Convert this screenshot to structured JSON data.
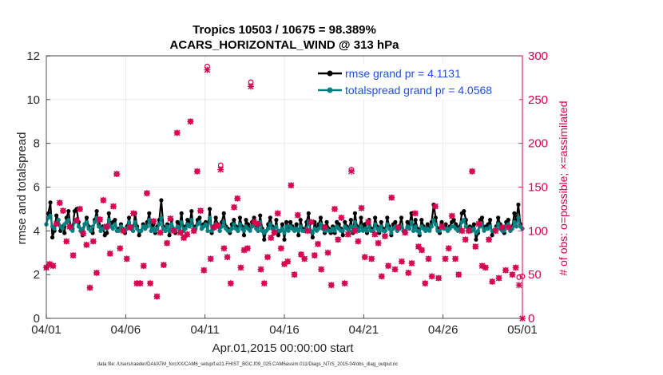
{
  "chart_data": {
    "type": "line",
    "title_line1": "Tropics 10503 / 10675 = 98.389%",
    "title_line2": "ACARS_HORIZONTAL_WIND @ 313 hPa",
    "xlabel": "Apr.01,2015 00:00:00 start",
    "ylabel_left": "rmse and totalspread",
    "ylabel_right": "# of obs: o=possible; ×=assimilated",
    "footer": "data file: /Users/raeder/DAI/ATM_forcXX/CAM6_setup/f.e21.FHIST_BGC.f09_025.CAM6assim.011/Diags_NTrS_2015-04/obs_diag_output.nc",
    "xlim": [
      0,
      30
    ],
    "ylim_left": [
      0,
      12
    ],
    "ylim_right": [
      0,
      300
    ],
    "x_ticks": [
      0,
      5,
      10,
      15,
      20,
      25,
      30
    ],
    "x_tick_labels": [
      "04/01",
      "04/06",
      "04/11",
      "04/16",
      "04/21",
      "04/26",
      "05/01"
    ],
    "y_ticks_left": [
      "0",
      "2",
      "4",
      "6",
      "8",
      "10",
      "12"
    ],
    "y_ticks_right": [
      "0",
      "50",
      "100",
      "150",
      "200",
      "250",
      "300"
    ],
    "legend_location": "top-right",
    "colors": {
      "rmse": "#000000",
      "spread": "#008080",
      "obs": "#d6004f",
      "legend_text": "#1f4fe6"
    },
    "series": [
      {
        "name": "rmse grand pr = 4.1131",
        "color": "#000000",
        "values": [
          4.3,
          4.8,
          5.3,
          3.7,
          4.0,
          4.7,
          4.5,
          4.0,
          4.2,
          3.9,
          4.6,
          4.9,
          4.2,
          4.1,
          4.9,
          5.0,
          4.4,
          4.0,
          3.8,
          4.3,
          4.6,
          4.2,
          4.0,
          3.9,
          4.5,
          4.9,
          4.3,
          4.0,
          4.2,
          3.8,
          3.9,
          4.8,
          4.2,
          4.4,
          4.5,
          4.0,
          4.1,
          4.3,
          4.0,
          3.9,
          4.2,
          4.6,
          4.1,
          4.0,
          4.8,
          4.2,
          3.8,
          4.0,
          4.3,
          4.1,
          4.4,
          4.8,
          4.0,
          4.3,
          3.9,
          4.2,
          4.5,
          5.4,
          4.2,
          4.0,
          4.3,
          3.8,
          4.5,
          4.1,
          3.9,
          4.4,
          4.2,
          4.8,
          4.0,
          4.2,
          4.5,
          4.3,
          4.9,
          4.0,
          4.2,
          4.5,
          4.6,
          4.1,
          4.3,
          4.4,
          4.0,
          5.0,
          3.9,
          4.2,
          4.6,
          4.3,
          4.0,
          4.4,
          4.8,
          4.2,
          4.1,
          3.9,
          4.3,
          4.5,
          4.2,
          4.0,
          4.6,
          4.2,
          3.8,
          4.5,
          4.3,
          4.1,
          4.4,
          4.6,
          4.2,
          4.0,
          4.7,
          4.1,
          3.6,
          4.0,
          4.3,
          4.6,
          4.2,
          3.9,
          4.5,
          3.8,
          4.0,
          4.3,
          3.6,
          4.4,
          4.1,
          4.4,
          4.2,
          4.0,
          4.3,
          3.8,
          4.5,
          4.1,
          4.0,
          4.4,
          4.8,
          4.0,
          3.7,
          4.4,
          4.1,
          4.3,
          4.6,
          4.2,
          3.9,
          4.4,
          4.1,
          3.9,
          4.2,
          3.9,
          4.4,
          4.3,
          4.1,
          3.8,
          4.4,
          4.2,
          4.0,
          4.5,
          3.9,
          4.8,
          4.2,
          4.0,
          4.6,
          4.1,
          4.3,
          3.9,
          4.5,
          4.1,
          4.0,
          4.6,
          4.2,
          3.9,
          4.4,
          4.1,
          4.0,
          4.6,
          4.2,
          3.8,
          4.3,
          4.4,
          4.0,
          4.2,
          4.6,
          4.0,
          3.9,
          4.4,
          4.3,
          4.8,
          4.0,
          4.5,
          4.1,
          3.8,
          4.5,
          4.2,
          4.0,
          4.3,
          4.1,
          4.4,
          5.2,
          4.6,
          4.1,
          3.9,
          4.4,
          4.2,
          4.3,
          4.0,
          4.2,
          4.4,
          4.5,
          4.3,
          4.1,
          4.2,
          4.8,
          4.9,
          4.5,
          4.0,
          4.2,
          4.1,
          4.3,
          3.6,
          3.9,
          4.5,
          4.6,
          4.1,
          4.2,
          4.3,
          4.5,
          3.8,
          4.0,
          4.2,
          4.6,
          4.3,
          4.1,
          3.9,
          4.4,
          4.5,
          4.0,
          4.2,
          4.8,
          4.5,
          5.2,
          4.3,
          4.1
        ],
        "note": "values sampled every 0.125 day"
      },
      {
        "name": "totalspread grand pr = 4.0568",
        "color": "#008080",
        "values": [
          4.3,
          4.6,
          4.7,
          4.2,
          4.1,
          4.3,
          4.5,
          4.2,
          4.1,
          4.3,
          4.4,
          4.5,
          4.1,
          4.0,
          4.4,
          4.5,
          4.2,
          4.0,
          4.1,
          4.3,
          4.4,
          4.1,
          4.0,
          4.2,
          4.4,
          4.6,
          4.2,
          4.0,
          4.1,
          4.2,
          4.1,
          4.5,
          4.2,
          4.1,
          4.3,
          4.0,
          4.0,
          4.2,
          4.1,
          4.0,
          4.1,
          4.4,
          4.2,
          4.0,
          4.4,
          4.1,
          4.0,
          4.0,
          4.2,
          4.1,
          4.2,
          4.5,
          4.0,
          4.1,
          4.0,
          4.1,
          4.3,
          4.6,
          4.1,
          4.0,
          4.2,
          4.0,
          4.3,
          4.1,
          4.0,
          4.2,
          4.1,
          4.4,
          4.0,
          4.1,
          4.3,
          4.2,
          4.5,
          4.0,
          4.1,
          4.3,
          4.4,
          4.1,
          4.2,
          4.3,
          4.0,
          4.6,
          4.0,
          4.1,
          4.3,
          4.2,
          4.0,
          4.2,
          4.4,
          4.1,
          4.0,
          4.0,
          4.1,
          4.3,
          4.1,
          4.0,
          4.3,
          4.1,
          4.0,
          4.2,
          4.1,
          4.0,
          4.2,
          4.3,
          4.1,
          4.0,
          4.4,
          4.0,
          3.9,
          4.0,
          4.1,
          4.3,
          4.1,
          4.0,
          4.2,
          4.0,
          4.0,
          4.1,
          3.9,
          4.2,
          4.0,
          4.2,
          4.1,
          4.0,
          4.1,
          4.0,
          4.2,
          4.0,
          4.0,
          4.1,
          4.4,
          4.0,
          3.9,
          4.1,
          4.0,
          4.1,
          4.3,
          4.1,
          4.0,
          4.1,
          4.0,
          4.0,
          4.1,
          4.0,
          4.2,
          4.1,
          4.0,
          4.0,
          4.2,
          4.1,
          4.0,
          4.2,
          4.0,
          4.4,
          4.1,
          4.0,
          4.2,
          4.0,
          4.1,
          4.0,
          4.2,
          4.0,
          4.0,
          4.3,
          4.1,
          4.0,
          4.2,
          4.0,
          4.0,
          4.3,
          4.1,
          3.9,
          4.1,
          4.2,
          4.0,
          4.1,
          4.2,
          4.0,
          4.0,
          4.2,
          4.1,
          4.4,
          4.0,
          4.2,
          4.0,
          3.9,
          4.2,
          4.1,
          4.0,
          4.1,
          4.0,
          4.2,
          4.5,
          4.3,
          4.0,
          4.0,
          4.2,
          4.1,
          4.1,
          4.0,
          4.1,
          4.2,
          4.2,
          4.1,
          4.0,
          4.1,
          4.4,
          4.5,
          4.2,
          4.0,
          4.1,
          4.0,
          4.1,
          3.9,
          4.0,
          4.2,
          4.3,
          4.0,
          4.1,
          4.1,
          4.2,
          4.0,
          4.0,
          4.1,
          4.3,
          4.1,
          4.0,
          4.0,
          4.2,
          4.3,
          4.0,
          4.1,
          4.4,
          4.2,
          4.6,
          4.2,
          4.1
        ]
      }
    ],
    "obs_possible": [
      58,
      62,
      60,
      108,
      132,
      123,
      88,
      105,
      72,
      112,
      125,
      97,
      84,
      35,
      88,
      52,
      113,
      135,
      105,
      74,
      128,
      165,
      80,
      100,
      68,
      104,
      120,
      40,
      40,
      60,
      143,
      40,
      111,
      25,
      98,
      61,
      86,
      114,
      100,
      212,
      98,
      92,
      96,
      225,
      100,
      168,
      123,
      55,
      288,
      68,
      104,
      106,
      175,
      80,
      70,
      40,
      127,
      137,
      58,
      78,
      80,
      270,
      110,
      108,
      56,
      40,
      70,
      92,
      98,
      120,
      80,
      62,
      65,
      152,
      50,
      118,
      73,
      68,
      100,
      110,
      72,
      85,
      56,
      104,
      75,
      38,
      125,
      90,
      115,
      40,
      96,
      170,
      100,
      88,
      126,
      70,
      110,
      68,
      96,
      86,
      48,
      94,
      60,
      138,
      56,
      104,
      65,
      98,
      52,
      63,
      120,
      82,
      78,
      40,
      68,
      48,
      128,
      46,
      105,
      68,
      80,
      117,
      68,
      50,
      100,
      90,
      100,
      168,
      82,
      108,
      60,
      58,
      90,
      42,
      100,
      46,
      104,
      55,
      104,
      50,
      58,
      47,
      48
    ],
    "obs_assimilated": [
      58,
      62,
      60,
      108,
      132,
      123,
      88,
      105,
      72,
      112,
      125,
      97,
      84,
      35,
      88,
      52,
      113,
      135,
      105,
      74,
      128,
      165,
      80,
      100,
      68,
      104,
      120,
      40,
      40,
      60,
      143,
      40,
      111,
      25,
      98,
      61,
      86,
      114,
      100,
      212,
      98,
      92,
      96,
      225,
      100,
      168,
      123,
      55,
      284,
      68,
      104,
      106,
      170,
      80,
      70,
      40,
      127,
      137,
      58,
      78,
      80,
      265,
      110,
      108,
      56,
      40,
      70,
      92,
      98,
      120,
      80,
      62,
      65,
      152,
      50,
      118,
      73,
      68,
      100,
      110,
      72,
      85,
      56,
      104,
      75,
      38,
      125,
      90,
      115,
      40,
      96,
      168,
      100,
      88,
      126,
      70,
      110,
      68,
      96,
      86,
      48,
      94,
      60,
      138,
      56,
      104,
      65,
      98,
      52,
      63,
      120,
      82,
      78,
      40,
      68,
      48,
      128,
      46,
      105,
      68,
      80,
      117,
      68,
      50,
      100,
      90,
      100,
      168,
      82,
      108,
      60,
      58,
      90,
      42,
      100,
      46,
      104,
      55,
      104,
      50,
      58,
      38,
      0
    ]
  }
}
